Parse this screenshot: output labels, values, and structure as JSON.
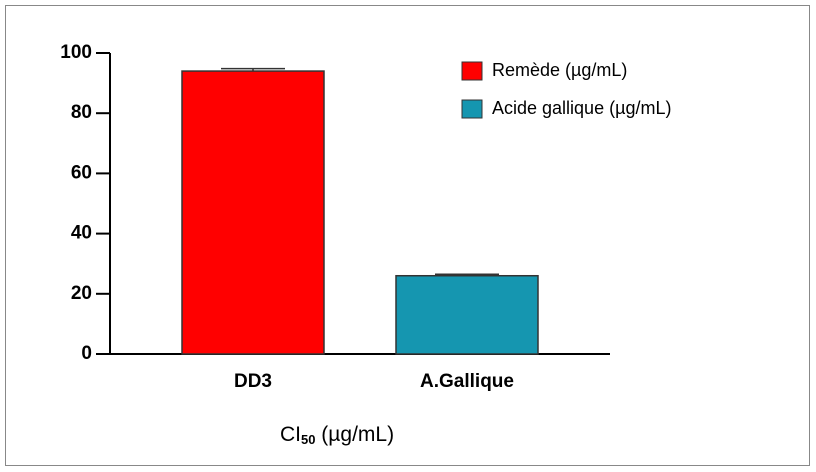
{
  "chart_data": {
    "type": "bar",
    "categories": [
      "DD3",
      "A.Gallique"
    ],
    "series": [
      {
        "name": "Remède (µg/mL)",
        "color": "#ff0000",
        "values": [
          94,
          null
        ],
        "errors": [
          0.8,
          null
        ]
      },
      {
        "name": "Acide gallique (µg/mL)",
        "color": "#1596b0",
        "values": [
          null,
          26
        ],
        "errors": [
          null,
          0.5
        ]
      }
    ],
    "xlabel": {
      "main": "CI",
      "sub": "50",
      "rest": " (µg/mL)"
    },
    "ylim": [
      0,
      100
    ],
    "yticks": [
      0,
      20,
      40,
      60,
      80,
      100
    ],
    "legend": "top-right",
    "grid": false
  }
}
